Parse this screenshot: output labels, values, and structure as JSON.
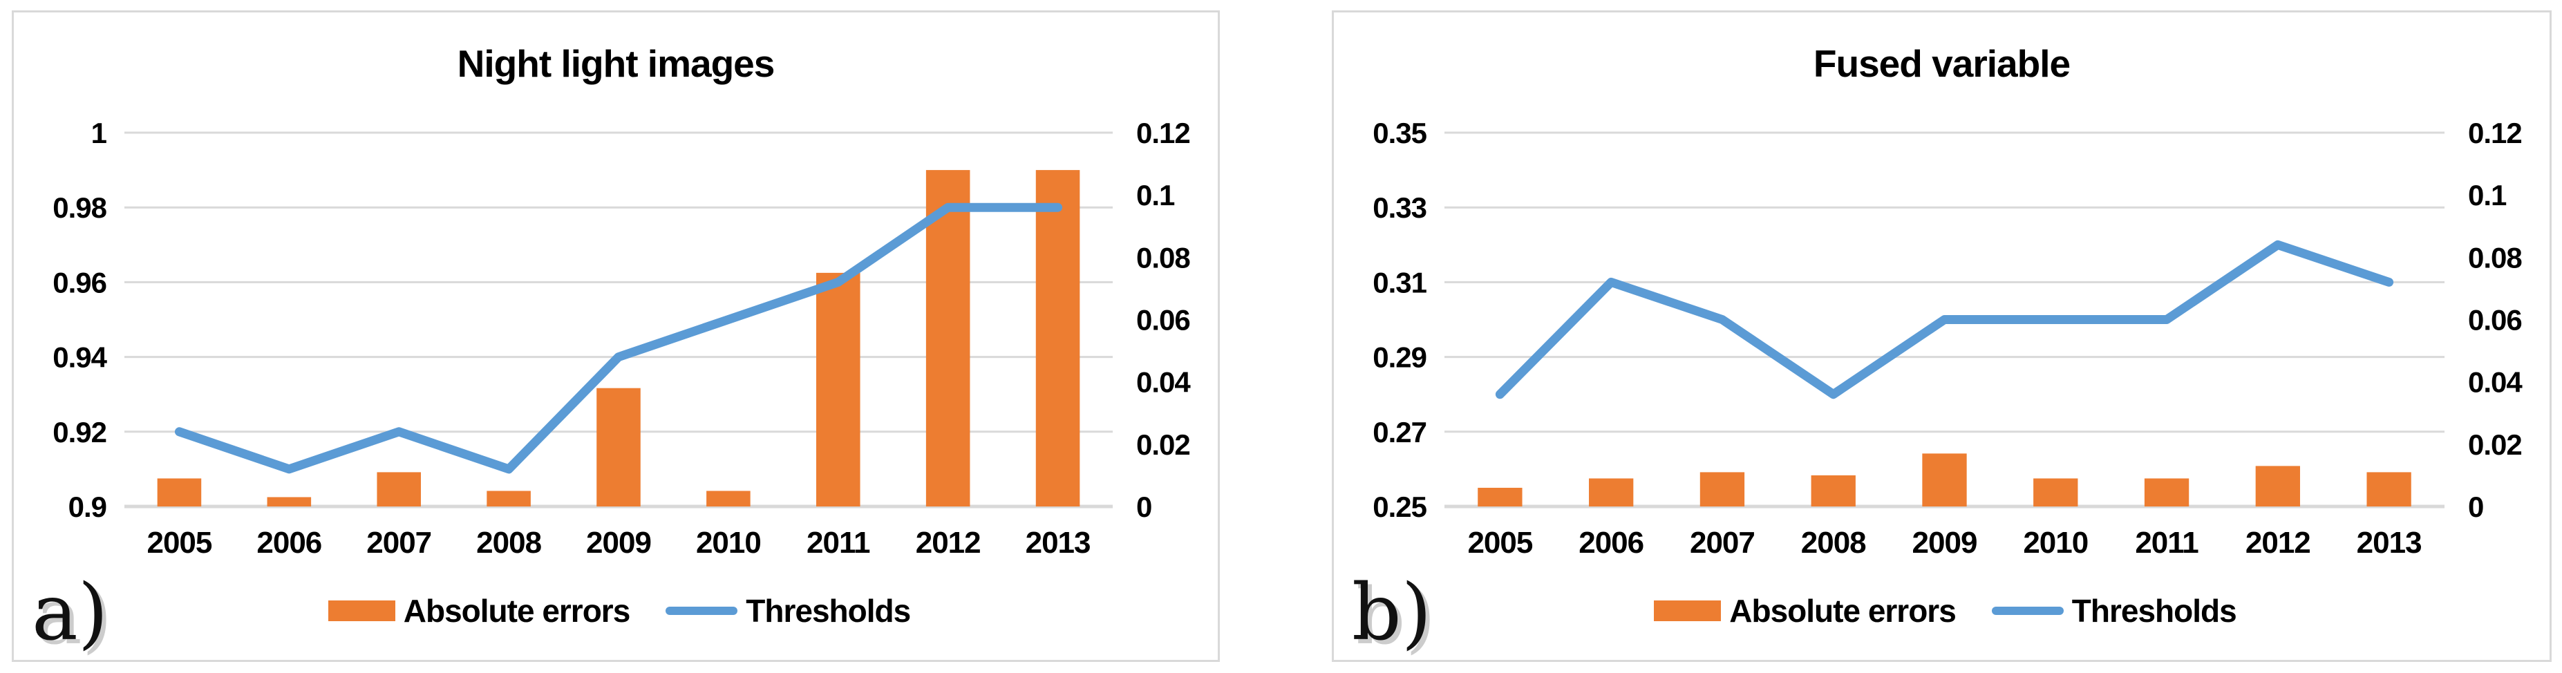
{
  "colors": {
    "bar_orange": "#ED7D31",
    "line_blue": "#5B9BD5",
    "gridline_gray": "#D9D9D9",
    "panel_border_gray": "#D9D9D9",
    "text_black": "#000000",
    "letter_shadow_gray": "#CCCCCC"
  },
  "chart_data": [
    {
      "type": "bar+line",
      "panel_label": "a)",
      "title": "Night light images",
      "categories": [
        "2005",
        "2006",
        "2007",
        "2008",
        "2009",
        "2010",
        "2011",
        "2012",
        "2013"
      ],
      "series": [
        {
          "name": "Absolute errors",
          "type": "bar",
          "axis": "right",
          "color": "#ED7D31",
          "values": [
            0.009,
            0.003,
            0.011,
            0.005,
            0.038,
            0.005,
            0.075,
            0.108,
            0.108
          ]
        },
        {
          "name": "Thresholds",
          "type": "line",
          "axis": "left",
          "color": "#5B9BD5",
          "values": [
            0.92,
            0.91,
            0.92,
            0.91,
            0.94,
            0.95,
            0.96,
            0.98,
            0.98
          ]
        }
      ],
      "left_axis": {
        "min": 0.9,
        "max": 1.0,
        "ticks": [
          "1",
          "0.98",
          "0.96",
          "0.94",
          "0.92",
          "0.9"
        ]
      },
      "right_axis": {
        "min": 0,
        "max": 0.12,
        "ticks": [
          "0.12",
          "0.1",
          "0.08",
          "0.06",
          "0.04",
          "0.02",
          "0"
        ]
      },
      "xlabel": "",
      "ylabel": "",
      "grid": true,
      "legend_position": "bottom"
    },
    {
      "type": "bar+line",
      "panel_label": "b)",
      "title": "Fused variable",
      "categories": [
        "2005",
        "2006",
        "2007",
        "2008",
        "2009",
        "2010",
        "2011",
        "2012",
        "2013"
      ],
      "series": [
        {
          "name": "Absolute errors",
          "type": "bar",
          "axis": "right",
          "color": "#ED7D31",
          "values": [
            0.006,
            0.009,
            0.011,
            0.01,
            0.017,
            0.009,
            0.009,
            0.013,
            0.011
          ]
        },
        {
          "name": "Thresholds",
          "type": "line",
          "axis": "left",
          "color": "#5B9BD5",
          "values": [
            0.28,
            0.31,
            0.3,
            0.28,
            0.3,
            0.3,
            0.3,
            0.32,
            0.31
          ]
        }
      ],
      "left_axis": {
        "min": 0.25,
        "max": 0.35,
        "ticks": [
          "0.35",
          "0.33",
          "0.31",
          "0.29",
          "0.27",
          "0.25"
        ]
      },
      "right_axis": {
        "min": 0,
        "max": 0.12,
        "ticks": [
          "0.12",
          "0.1",
          "0.08",
          "0.06",
          "0.04",
          "0.02",
          "0"
        ]
      },
      "xlabel": "",
      "ylabel": "",
      "grid": true,
      "legend_position": "bottom"
    }
  ]
}
